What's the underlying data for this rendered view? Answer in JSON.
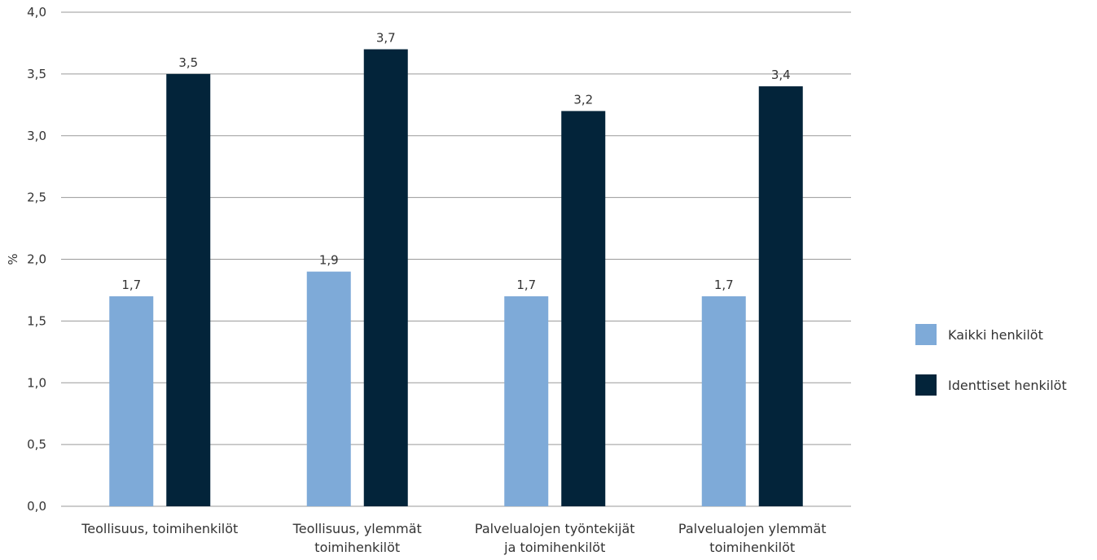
{
  "chart_data": {
    "type": "bar",
    "ylabel": "%",
    "ylim": [
      0,
      4.0
    ],
    "yticks": [
      "0,0",
      "0,5",
      "1,0",
      "1,5",
      "2,0",
      "2,5",
      "3,0",
      "3,5",
      "4,0"
    ],
    "ytick_values": [
      0,
      0.5,
      1.0,
      1.5,
      2.0,
      2.5,
      3.0,
      3.5,
      4.0
    ],
    "grid": true,
    "legend_position": "right",
    "categories": [
      [
        "Teollisuus, toimihenkilöt"
      ],
      [
        "Teollisuus, ylemmät",
        "toimihenkilöt"
      ],
      [
        "Palvelualojen työntekijät",
        "ja toimihenkilöt"
      ],
      [
        "Palvelualojen ylemmät",
        "toimihenkilöt"
      ]
    ],
    "series": [
      {
        "name": "Kaikki henkilöt",
        "color": "#7eaad8",
        "values": [
          1.7,
          1.9,
          1.7,
          1.7
        ],
        "labels": [
          "1,7",
          "1,9",
          "1,7",
          "1,7"
        ]
      },
      {
        "name": "Identtiset henkilöt",
        "color": "#03243a",
        "values": [
          3.5,
          3.7,
          3.2,
          3.4
        ],
        "labels": [
          "3,5",
          "3,7",
          "3,2",
          "3,4"
        ]
      }
    ]
  }
}
